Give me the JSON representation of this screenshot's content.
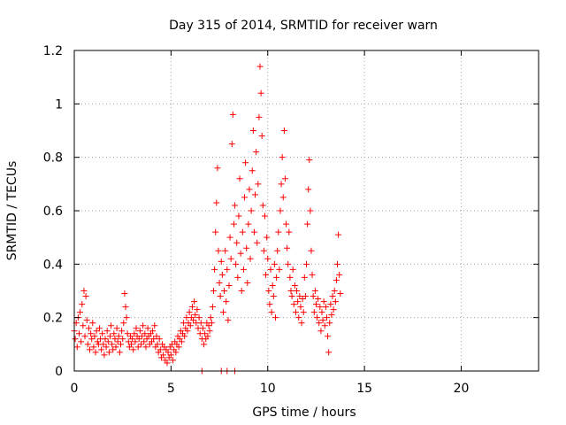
{
  "chart_data": {
    "type": "scatter",
    "title": "Day 315 of 2014, SRMTID for receiver warn",
    "xlabel": "GPS time / hours",
    "ylabel": "SRMTID / TECUs",
    "xlim": [
      0,
      24
    ],
    "ylim": [
      0,
      1.2
    ],
    "xticks": [
      0,
      5,
      10,
      15,
      20
    ],
    "yticks": [
      0,
      0.2,
      0.4,
      0.6,
      0.8,
      1.0,
      1.2
    ],
    "ytick_labels": [
      "0",
      "0.2",
      "0.4",
      "0.6",
      "0.8",
      "1",
      "1.2"
    ],
    "grid": true,
    "marker": "+",
    "color": "#ff0000",
    "series": [
      {
        "name": "SRMTID",
        "points": [
          [
            0.0,
            0.15
          ],
          [
            0.05,
            0.12
          ],
          [
            0.1,
            0.18
          ],
          [
            0.15,
            0.09
          ],
          [
            0.2,
            0.2
          ],
          [
            0.25,
            0.14
          ],
          [
            0.3,
            0.22
          ],
          [
            0.35,
            0.11
          ],
          [
            0.4,
            0.25
          ],
          [
            0.45,
            0.17
          ],
          [
            0.5,
            0.3
          ],
          [
            0.55,
            0.13
          ],
          [
            0.6,
            0.28
          ],
          [
            0.65,
            0.19
          ],
          [
            0.7,
            0.1
          ],
          [
            0.75,
            0.16
          ],
          [
            0.8,
            0.08
          ],
          [
            0.85,
            0.14
          ],
          [
            0.9,
            0.12
          ],
          [
            0.95,
            0.18
          ],
          [
            1.0,
            0.09
          ],
          [
            1.05,
            0.13
          ],
          [
            1.1,
            0.07
          ],
          [
            1.15,
            0.15
          ],
          [
            1.2,
            0.11
          ],
          [
            1.25,
            0.1
          ],
          [
            1.3,
            0.16
          ],
          [
            1.35,
            0.12
          ],
          [
            1.4,
            0.08
          ],
          [
            1.45,
            0.14
          ],
          [
            1.5,
            0.1
          ],
          [
            1.55,
            0.06
          ],
          [
            1.6,
            0.12
          ],
          [
            1.65,
            0.09
          ],
          [
            1.7,
            0.15
          ],
          [
            1.75,
            0.11
          ],
          [
            1.8,
            0.07
          ],
          [
            1.85,
            0.13
          ],
          [
            1.9,
            0.17
          ],
          [
            1.95,
            0.1
          ],
          [
            2.0,
            0.08
          ],
          [
            2.05,
            0.14
          ],
          [
            2.1,
            0.12
          ],
          [
            2.15,
            0.09
          ],
          [
            2.2,
            0.16
          ],
          [
            2.25,
            0.11
          ],
          [
            2.3,
            0.13
          ],
          [
            2.35,
            0.07
          ],
          [
            2.4,
            0.1
          ],
          [
            2.45,
            0.15
          ],
          [
            2.5,
            0.12
          ],
          [
            2.55,
            0.18
          ],
          [
            2.6,
            0.29
          ],
          [
            2.65,
            0.24
          ],
          [
            2.7,
            0.2
          ],
          [
            2.75,
            0.14
          ],
          [
            2.8,
            0.11
          ],
          [
            2.85,
            0.09
          ],
          [
            2.9,
            0.13
          ],
          [
            2.95,
            0.1
          ],
          [
            3.0,
            0.12
          ],
          [
            3.05,
            0.08
          ],
          [
            3.1,
            0.14
          ],
          [
            3.15,
            0.11
          ],
          [
            3.2,
            0.16
          ],
          [
            3.25,
            0.13
          ],
          [
            3.3,
            0.09
          ],
          [
            3.35,
            0.12
          ],
          [
            3.4,
            0.15
          ],
          [
            3.45,
            0.1
          ],
          [
            3.5,
            0.13
          ],
          [
            3.55,
            0.17
          ],
          [
            3.6,
            0.11
          ],
          [
            3.65,
            0.14
          ],
          [
            3.7,
            0.09
          ],
          [
            3.75,
            0.12
          ],
          [
            3.8,
            0.16
          ],
          [
            3.85,
            0.13
          ],
          [
            3.9,
            0.1
          ],
          [
            3.95,
            0.14
          ],
          [
            4.0,
            0.11
          ],
          [
            4.05,
            0.15
          ],
          [
            4.1,
            0.12
          ],
          [
            4.15,
            0.17
          ],
          [
            4.2,
            0.09
          ],
          [
            4.25,
            0.13
          ],
          [
            4.3,
            0.1
          ],
          [
            4.35,
            0.07
          ],
          [
            4.4,
            0.12
          ],
          [
            4.45,
            0.08
          ],
          [
            4.5,
            0.05
          ],
          [
            4.55,
            0.1
          ],
          [
            4.6,
            0.06
          ],
          [
            4.65,
            0.09
          ],
          [
            4.7,
            0.04
          ],
          [
            4.75,
            0.08
          ],
          [
            4.8,
            0.03
          ],
          [
            4.85,
            0.07
          ],
          [
            4.9,
            0.05
          ],
          [
            4.95,
            0.09
          ],
          [
            5.0,
            0.06
          ],
          [
            5.05,
            0.1
          ],
          [
            5.1,
            0.04
          ],
          [
            5.15,
            0.08
          ],
          [
            5.2,
            0.11
          ],
          [
            5.25,
            0.07
          ],
          [
            5.3,
            0.1
          ],
          [
            5.35,
            0.13
          ],
          [
            5.4,
            0.09
          ],
          [
            5.45,
            0.12
          ],
          [
            5.5,
            0.15
          ],
          [
            5.55,
            0.11
          ],
          [
            5.6,
            0.14
          ],
          [
            5.65,
            0.18
          ],
          [
            5.7,
            0.13
          ],
          [
            5.75,
            0.16
          ],
          [
            5.8,
            0.2
          ],
          [
            5.85,
            0.15
          ],
          [
            5.9,
            0.18
          ],
          [
            5.95,
            0.22
          ],
          [
            6.0,
            0.17
          ],
          [
            6.05,
            0.2
          ],
          [
            6.1,
            0.24
          ],
          [
            6.15,
            0.19
          ],
          [
            6.2,
            0.26
          ],
          [
            6.25,
            0.21
          ],
          [
            6.3,
            0.18
          ],
          [
            6.35,
            0.23
          ],
          [
            6.4,
            0.16
          ],
          [
            6.45,
            0.2
          ],
          [
            6.5,
            0.14
          ],
          [
            6.55,
            0.18
          ],
          [
            6.6,
            0.12
          ],
          [
            6.65,
            0.16
          ],
          [
            6.7,
            0.1
          ],
          [
            6.75,
            0.14
          ],
          [
            6.8,
            0.12
          ],
          [
            6.85,
            0.18
          ],
          [
            6.9,
            0.13
          ],
          [
            6.95,
            0.17
          ],
          [
            7.0,
            0.15
          ],
          [
            7.05,
            0.2
          ],
          [
            7.1,
            0.18
          ],
          [
            7.15,
            0.24
          ],
          [
            7.2,
            0.3
          ],
          [
            7.25,
            0.38
          ],
          [
            7.3,
            0.52
          ],
          [
            7.35,
            0.63
          ],
          [
            7.4,
            0.76
          ],
          [
            7.45,
            0.45
          ],
          [
            7.5,
            0.33
          ],
          [
            7.55,
            0.28
          ],
          [
            7.6,
            0.41
          ],
          [
            7.65,
            0.36
          ],
          [
            7.7,
            0.22
          ],
          [
            7.75,
            0.3
          ],
          [
            7.8,
            0.45
          ],
          [
            7.85,
            0.26
          ],
          [
            7.9,
            0.38
          ],
          [
            7.95,
            0.19
          ],
          [
            8.0,
            0.32
          ],
          [
            8.05,
            0.5
          ],
          [
            8.1,
            0.42
          ],
          [
            8.15,
            0.85
          ],
          [
            8.2,
            0.96
          ],
          [
            8.25,
            0.55
          ],
          [
            8.3,
            0.62
          ],
          [
            8.35,
            0.4
          ],
          [
            8.4,
            0.48
          ],
          [
            8.45,
            0.35
          ],
          [
            8.5,
            0.58
          ],
          [
            8.55,
            0.72
          ],
          [
            8.6,
            0.44
          ],
          [
            8.65,
            0.3
          ],
          [
            8.7,
            0.52
          ],
          [
            8.75,
            0.38
          ],
          [
            8.8,
            0.65
          ],
          [
            8.85,
            0.78
          ],
          [
            8.9,
            0.46
          ],
          [
            8.95,
            0.33
          ],
          [
            9.0,
            0.55
          ],
          [
            9.05,
            0.68
          ],
          [
            9.1,
            0.42
          ],
          [
            9.15,
            0.6
          ],
          [
            9.2,
            0.75
          ],
          [
            9.25,
            0.9
          ],
          [
            9.3,
            0.52
          ],
          [
            9.35,
            0.66
          ],
          [
            9.4,
            0.82
          ],
          [
            9.45,
            0.48
          ],
          [
            9.5,
            0.7
          ],
          [
            9.55,
            0.95
          ],
          [
            9.6,
            1.14
          ],
          [
            9.65,
            1.04
          ],
          [
            9.7,
            0.88
          ],
          [
            9.75,
            0.62
          ],
          [
            9.8,
            0.45
          ],
          [
            9.85,
            0.58
          ],
          [
            9.9,
            0.36
          ],
          [
            9.95,
            0.5
          ],
          [
            10.0,
            0.42
          ],
          [
            10.05,
            0.3
          ],
          [
            10.1,
            0.25
          ],
          [
            10.15,
            0.38
          ],
          [
            10.2,
            0.22
          ],
          [
            10.25,
            0.32
          ],
          [
            10.3,
            0.28
          ],
          [
            10.35,
            0.4
          ],
          [
            10.4,
            0.2
          ],
          [
            10.45,
            0.35
          ],
          [
            10.5,
            0.45
          ],
          [
            10.55,
            0.52
          ],
          [
            10.6,
            0.38
          ],
          [
            10.65,
            0.6
          ],
          [
            10.7,
            0.7
          ],
          [
            10.75,
            0.8
          ],
          [
            10.8,
            0.65
          ],
          [
            10.85,
            0.9
          ],
          [
            10.9,
            0.72
          ],
          [
            10.95,
            0.55
          ],
          [
            11.0,
            0.46
          ],
          [
            11.05,
            0.4
          ],
          [
            11.1,
            0.52
          ],
          [
            11.15,
            0.35
          ],
          [
            11.2,
            0.3
          ],
          [
            11.25,
            0.28
          ],
          [
            11.3,
            0.38
          ],
          [
            11.35,
            0.25
          ],
          [
            11.4,
            0.32
          ],
          [
            11.45,
            0.22
          ],
          [
            11.5,
            0.3
          ],
          [
            11.55,
            0.26
          ],
          [
            11.6,
            0.2
          ],
          [
            11.65,
            0.28
          ],
          [
            11.7,
            0.24
          ],
          [
            11.75,
            0.18
          ],
          [
            11.8,
            0.27
          ],
          [
            11.85,
            0.22
          ],
          [
            11.9,
            0.35
          ],
          [
            11.95,
            0.28
          ],
          [
            12.0,
            0.4
          ],
          [
            12.05,
            0.55
          ],
          [
            12.1,
            0.68
          ],
          [
            12.15,
            0.79
          ],
          [
            12.2,
            0.6
          ],
          [
            12.25,
            0.45
          ],
          [
            12.3,
            0.36
          ],
          [
            12.35,
            0.28
          ],
          [
            12.4,
            0.22
          ],
          [
            12.45,
            0.3
          ],
          [
            12.5,
            0.25
          ],
          [
            12.55,
            0.2
          ],
          [
            12.6,
            0.27
          ],
          [
            12.65,
            0.18
          ],
          [
            12.7,
            0.24
          ],
          [
            12.75,
            0.15
          ],
          [
            12.8,
            0.22
          ],
          [
            12.85,
            0.19
          ],
          [
            12.9,
            0.26
          ],
          [
            12.95,
            0.17
          ],
          [
            13.0,
            0.24
          ],
          [
            13.05,
            0.2
          ],
          [
            13.1,
            0.13
          ],
          [
            13.15,
            0.07
          ],
          [
            13.2,
            0.18
          ],
          [
            13.25,
            0.25
          ],
          [
            13.3,
            0.21
          ],
          [
            13.35,
            0.28
          ],
          [
            13.4,
            0.23
          ],
          [
            13.45,
            0.3
          ],
          [
            13.5,
            0.26
          ],
          [
            13.55,
            0.34
          ],
          [
            13.6,
            0.4
          ],
          [
            13.65,
            0.51
          ],
          [
            13.7,
            0.36
          ],
          [
            13.75,
            0.29
          ],
          [
            7.6,
            0.0
          ],
          [
            7.9,
            0.0
          ],
          [
            8.3,
            0.0
          ],
          [
            6.6,
            0.0
          ]
        ]
      }
    ]
  }
}
